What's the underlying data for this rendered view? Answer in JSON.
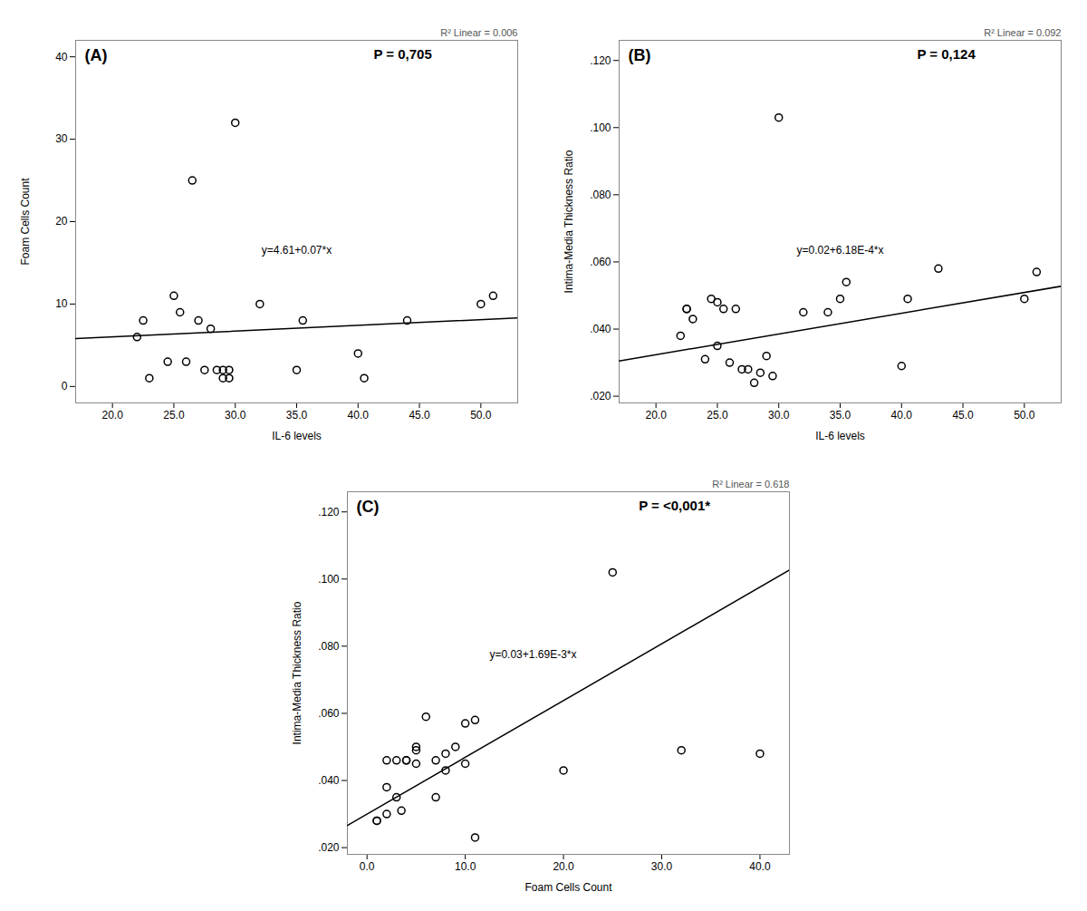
{
  "chart_data": [
    {
      "type": "scatter",
      "xlabel": "IL-6 levels",
      "ylabel": "Foam Cells Count",
      "x": [
        22.0,
        22.5,
        23.0,
        24.5,
        25.0,
        25.5,
        26.0,
        26.5,
        27.0,
        27.5,
        28.0,
        28.5,
        29.0,
        29.0,
        29.5,
        29.5,
        30.0,
        32.0,
        35.0,
        35.5,
        40.0,
        40.5,
        44.0,
        50.0,
        51.0
      ],
      "y": [
        6.0,
        8.0,
        1.0,
        3.0,
        11.0,
        9.0,
        3.0,
        25.0,
        8.0,
        2.0,
        7.0,
        2.0,
        1.0,
        2.0,
        2.0,
        1.0,
        32.0,
        10.0,
        2.0,
        8.0,
        4.0,
        1.0,
        8.0,
        10.0,
        11.0
      ],
      "regression_line": {
        "x": [
          17.0,
          53.0
        ],
        "y": [
          5.8,
          8.32
        ]
      },
      "annotations": [
        "(A)",
        "P = 0,705",
        "R² Linear = 0.006",
        "y=4.61+0.07*x"
      ],
      "xlim": [
        17.0,
        53.0
      ],
      "ylim": [
        -2,
        42
      ],
      "xticks": [
        {
          "value": 20.0,
          "label": "20.0"
        },
        {
          "value": 25.0,
          "label": "25.0"
        },
        {
          "value": 30.0,
          "label": "30.0"
        },
        {
          "value": 35.0,
          "label": "35.0"
        },
        {
          "value": 40.0,
          "label": "40.0"
        },
        {
          "value": 45.0,
          "label": "45.0"
        },
        {
          "value": 50.0,
          "label": "50.0"
        }
      ],
      "yticks": [
        0,
        10,
        20,
        30,
        40
      ]
    },
    {
      "type": "scatter",
      "xlabel": "IL-6 levels",
      "ylabel": "Intima-Media Thickness Ratio",
      "x": [
        22.0,
        22.5,
        22.5,
        23.0,
        24.0,
        24.5,
        25.0,
        25.0,
        25.5,
        26.0,
        26.5,
        27.0,
        27.5,
        28.0,
        28.5,
        29.0,
        29.5,
        30.0,
        32.0,
        34.0,
        35.0,
        35.5,
        40.0,
        40.5,
        43.0,
        50.0,
        51.0
      ],
      "y": [
        0.038,
        0.046,
        0.046,
        0.043,
        0.031,
        0.049,
        0.035,
        0.048,
        0.046,
        0.03,
        0.046,
        0.028,
        0.028,
        0.024,
        0.027,
        0.032,
        0.026,
        0.103,
        0.045,
        0.045,
        0.049,
        0.054,
        0.029,
        0.049,
        0.058,
        0.049,
        0.057
      ],
      "regression_line": {
        "x": [
          17.0,
          53.0
        ],
        "y": [
          0.030506,
          0.052754
        ]
      },
      "annotations": [
        "(B)",
        "P = 0,124",
        "R² Linear = 0.092",
        "y=0.02+6.18E-4*x"
      ],
      "xlim": [
        17.0,
        53.0
      ],
      "ylim": [
        0.018,
        0.126
      ],
      "xticks": [
        {
          "value": 20.0,
          "label": "20.0"
        },
        {
          "value": 25.0,
          "label": "25.0"
        },
        {
          "value": 30.0,
          "label": "30.0"
        },
        {
          "value": 35.0,
          "label": "35.0"
        },
        {
          "value": 40.0,
          "label": "40.0"
        },
        {
          "value": 45.0,
          "label": "45.0"
        },
        {
          "value": 50.0,
          "label": "50.0"
        }
      ],
      "yticks": [
        {
          "value": 0.02,
          "label": ".020"
        },
        {
          "value": 0.04,
          "label": ".040"
        },
        {
          "value": 0.06,
          "label": ".060"
        },
        {
          "value": 0.08,
          "label": ".080"
        },
        {
          "value": 0.1,
          "label": ".100"
        },
        {
          "value": 0.12,
          "label": ".120"
        }
      ]
    },
    {
      "type": "scatter",
      "xlabel": "Foam Cells Count",
      "ylabel": "Intima-Media Thickness Ratio",
      "x": [
        1.0,
        1.0,
        2.0,
        2.0,
        2.0,
        3.0,
        3.0,
        3.5,
        4.0,
        4.0,
        5.0,
        5.0,
        5.0,
        6.0,
        7.0,
        7.0,
        8.0,
        8.0,
        9.0,
        10.0,
        10.0,
        11.0,
        11.0,
        20.0,
        25.0,
        32.0,
        40.0
      ],
      "y": [
        0.028,
        0.028,
        0.03,
        0.038,
        0.046,
        0.046,
        0.035,
        0.031,
        0.046,
        0.046,
        0.049,
        0.05,
        0.045,
        0.059,
        0.046,
        0.035,
        0.043,
        0.048,
        0.05,
        0.057,
        0.045,
        0.023,
        0.058,
        0.043,
        0.102,
        0.049,
        0.048
      ],
      "regression_line": {
        "x": [
          -2,
          43
        ],
        "y": [
          0.02662,
          0.10267
        ]
      },
      "annotations": [
        "(C)",
        "P = <0,001*",
        "R² Linear = 0.618",
        "y=0.03+1.69E-3*x"
      ],
      "xlim": [
        -2,
        43
      ],
      "ylim": [
        0.018,
        0.126
      ],
      "xticks": [
        {
          "value": 0,
          "label": "0.0"
        },
        {
          "value": 10,
          "label": "10.0"
        },
        {
          "value": 20,
          "label": "20.0"
        },
        {
          "value": 30,
          "label": "30.0"
        },
        {
          "value": 40,
          "label": "40.0"
        }
      ],
      "yticks": [
        {
          "value": 0.02,
          "label": ".020"
        },
        {
          "value": 0.04,
          "label": ".040"
        },
        {
          "value": 0.06,
          "label": ".060"
        },
        {
          "value": 0.08,
          "label": ".080"
        },
        {
          "value": 0.1,
          "label": ".100"
        },
        {
          "value": 0.12,
          "label": ".120"
        }
      ]
    }
  ]
}
